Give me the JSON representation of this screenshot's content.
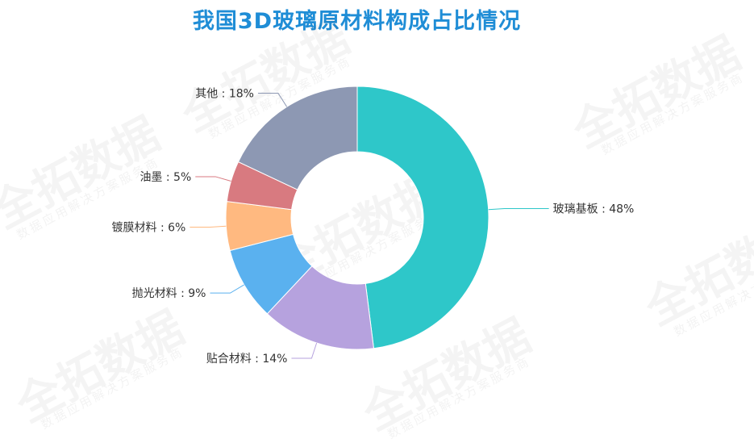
{
  "title": "我国3D玻璃原材料构成占比情况",
  "watermark": {
    "brand": "全拓数据",
    "tagline": "数据应用解决方案服务商"
  },
  "chart_data": {
    "type": "pie",
    "donut": true,
    "title": "我国3D玻璃原材料构成占比情况",
    "slices": [
      {
        "label": "玻璃基板",
        "value": 48,
        "display": "玻璃基板 : 48%",
        "color": "#2ec7c9"
      },
      {
        "label": "贴合材料",
        "value": 14,
        "display": "贴合材料 : 14%",
        "color": "#b6a2de"
      },
      {
        "label": "抛光材料",
        "value": 9,
        "display": "抛光材料 : 9%",
        "color": "#5ab1ef"
      },
      {
        "label": "镀膜材料",
        "value": 6,
        "display": "镀膜材料 : 6%",
        "color": "#ffb980"
      },
      {
        "label": "油墨",
        "value": 5,
        "display": "油墨 : 5%",
        "color": "#d87a80"
      },
      {
        "label": "其他",
        "value": 18,
        "display": "其他 : 18%",
        "color": "#8d98b3"
      }
    ],
    "legend": "none"
  }
}
